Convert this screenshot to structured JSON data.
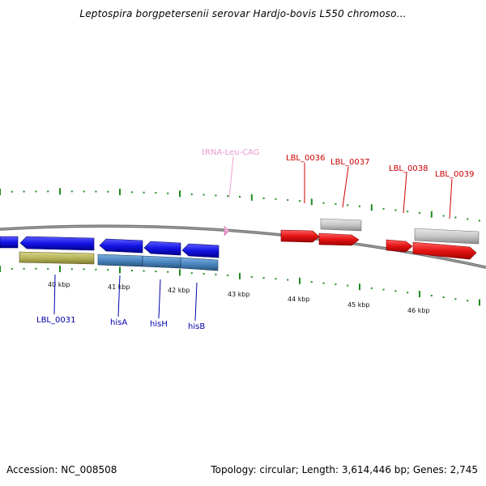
{
  "header": {
    "title": "Leptospira borgpetersenii serovar Hardjo-bovis L550 chromoso..."
  },
  "footer": {
    "accession": "Accession: NC_008508",
    "info": "Topology: circular; Length: 3,614,446 bp; Genes: 2,745"
  },
  "map": {
    "scale_labels": [
      "40 kbp",
      "41 kbp",
      "42 kbp",
      "43 kbp",
      "44 kbp",
      "45 kbp",
      "46 kbp"
    ],
    "feature_labels": [
      {
        "text": "tRNA-Leu-CAG",
        "color": "#e79ad0"
      },
      {
        "text": "LBL_0036",
        "color": "#cc0000"
      },
      {
        "text": "LBL_0037",
        "color": "#cc0000"
      },
      {
        "text": "LBL_0038",
        "color": "#cc0000"
      },
      {
        "text": "LBL_0039",
        "color": "#cc0000"
      },
      {
        "text": "LBL_0031",
        "color": "#0000aa"
      },
      {
        "text": "hisA",
        "color": "#0000aa"
      },
      {
        "text": "hisH",
        "color": "#0000aa"
      },
      {
        "text": "hisB",
        "color": "#0000aa"
      }
    ],
    "colors": {
      "backbone": "#808080",
      "tick": "#1f8a1f",
      "blue_gene": "#1414e6",
      "steel_gene": "#4a86c0",
      "olive_gene": "#b7b55a",
      "red_gene": "#e61414",
      "grey_gene": "#c8c8c8",
      "trna": "#f0a0d0"
    }
  }
}
